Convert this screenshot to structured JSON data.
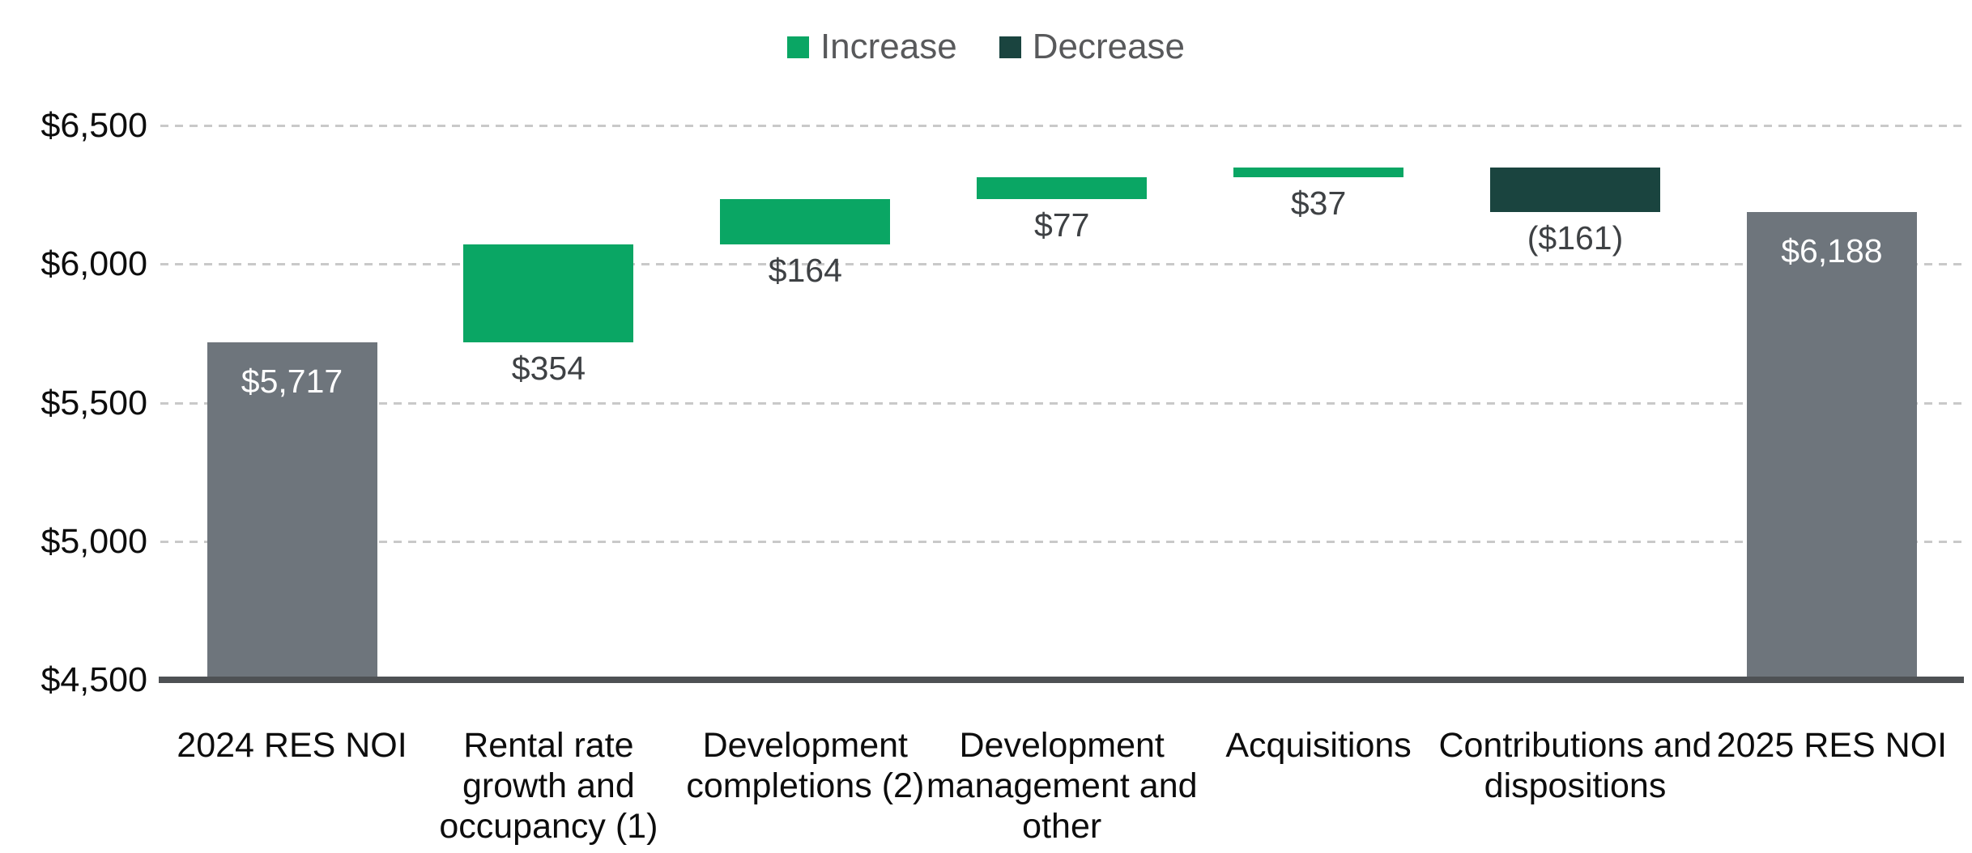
{
  "legend": {
    "items": [
      {
        "label": "Increase",
        "color": "#0AA664"
      },
      {
        "label": "Decrease",
        "color": "#1A443F"
      }
    ]
  },
  "chart_data": {
    "type": "bar",
    "subtype": "waterfall",
    "title": "",
    "xlabel": "",
    "ylabel": "",
    "y_axis": {
      "ticks": [
        "$4,500",
        "$5,000",
        "$5,500",
        "$6,000",
        "$6,500"
      ],
      "tick_values": [
        4500,
        5000,
        5500,
        6000,
        6500
      ],
      "min": 4500,
      "max": 6500,
      "grid": "dashed"
    },
    "categories": [
      "2024 RES NOI",
      "Rental rate growth and occupancy (1)",
      "Development completions (2)",
      "Development management and other",
      "Acquisitions",
      "Contributions and dispositions",
      "2025 RES NOI"
    ],
    "bars": [
      {
        "category": "2024 RES NOI",
        "kind": "total",
        "value": 5717,
        "label": "$5,717",
        "label_position": "inside"
      },
      {
        "category": "Rental rate growth and occupancy (1)",
        "kind": "increase",
        "value": 354,
        "label": "$354",
        "label_position": "below"
      },
      {
        "category": "Development completions (2)",
        "kind": "increase",
        "value": 164,
        "label": "$164",
        "label_position": "below"
      },
      {
        "category": "Development management and other",
        "kind": "increase",
        "value": 77,
        "label": "$77",
        "label_position": "below"
      },
      {
        "category": "Acquisitions",
        "kind": "increase",
        "value": 37,
        "label": "$37",
        "label_position": "below"
      },
      {
        "category": "Contributions and dispositions",
        "kind": "decrease",
        "value": -161,
        "label": "($161)",
        "label_position": "below"
      },
      {
        "category": "2025 RES NOI",
        "kind": "total",
        "value": 6188,
        "label": "$6,188",
        "label_position": "inside"
      }
    ],
    "colors": {
      "total": "#6E757C",
      "increase": "#0AA664",
      "decrease": "#1A443F"
    },
    "legend_position": "top-center"
  }
}
